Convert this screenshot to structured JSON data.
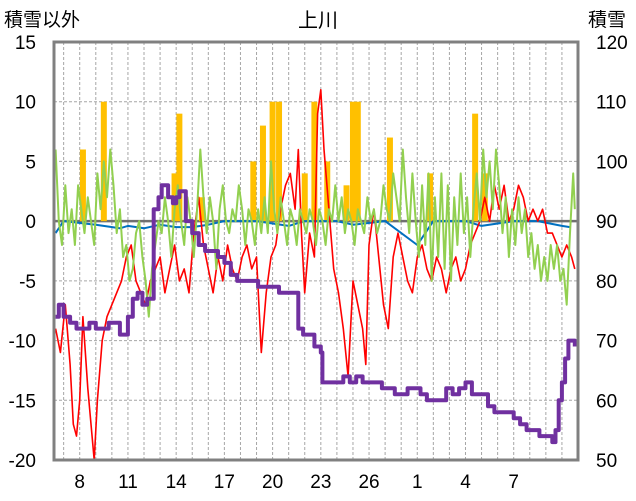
{
  "chart_data": {
    "type": "line",
    "title": "上川",
    "ylabel_left": "積雪以外",
    "ylabel_right": "積雪",
    "ylim_left": [
      -20,
      15
    ],
    "ylim_right": [
      50,
      120
    ],
    "yticks_left": [
      "15",
      "10",
      "5",
      "0",
      "-5",
      "-10",
      "-15",
      "-20"
    ],
    "yticks_right": [
      "120",
      "110",
      "100",
      "90",
      "80",
      "70",
      "60",
      "50"
    ],
    "xtick_labels": [
      "8",
      "11",
      "14",
      "17",
      "20",
      "23",
      "26",
      "1",
      "4",
      "7"
    ],
    "grid": true,
    "colors": {
      "snow_depth": "#7030a0",
      "temperature": "#ff0000",
      "green_series": "#92d050",
      "orange_bars": "#ffc000",
      "blue_series": "#0070c0",
      "frame": "#808080",
      "grid": "#a6a6a6"
    },
    "snow_depth": [
      [
        6.5,
        74
      ],
      [
        6.7,
        76
      ],
      [
        7.0,
        74
      ],
      [
        7.4,
        73
      ],
      [
        7.8,
        72
      ],
      [
        8.2,
        72
      ],
      [
        8.6,
        73
      ],
      [
        9.0,
        72
      ],
      [
        9.4,
        72
      ],
      [
        9.8,
        73
      ],
      [
        10.2,
        73
      ],
      [
        10.5,
        71
      ],
      [
        10.8,
        71
      ],
      [
        11.0,
        74
      ],
      [
        11.3,
        77
      ],
      [
        11.6,
        78
      ],
      [
        11.9,
        76
      ],
      [
        12.2,
        77
      ],
      [
        12.6,
        92
      ],
      [
        12.9,
        94
      ],
      [
        13.1,
        96
      ],
      [
        13.3,
        96
      ],
      [
        13.5,
        94
      ],
      [
        13.8,
        93
      ],
      [
        14.0,
        94
      ],
      [
        14.2,
        95
      ],
      [
        14.6,
        90
      ],
      [
        15.0,
        88
      ],
      [
        15.4,
        86
      ],
      [
        15.8,
        85
      ],
      [
        16.2,
        85
      ],
      [
        16.6,
        84
      ],
      [
        17.0,
        83
      ],
      [
        17.4,
        81
      ],
      [
        17.8,
        80
      ],
      [
        18.3,
        80
      ],
      [
        18.7,
        80
      ],
      [
        19.1,
        79
      ],
      [
        19.6,
        79
      ],
      [
        20.0,
        79
      ],
      [
        20.4,
        78
      ],
      [
        20.8,
        78
      ],
      [
        21.2,
        78
      ],
      [
        21.6,
        72
      ],
      [
        21.9,
        71
      ],
      [
        22.2,
        71
      ],
      [
        22.6,
        69
      ],
      [
        23.0,
        68
      ],
      [
        23.1,
        63
      ],
      [
        23.6,
        63
      ],
      [
        24.0,
        63
      ],
      [
        24.4,
        64
      ],
      [
        24.8,
        63
      ],
      [
        25.2,
        64
      ],
      [
        25.6,
        63
      ],
      [
        26.0,
        63
      ],
      [
        26.4,
        63
      ],
      [
        26.8,
        62
      ],
      [
        27.2,
        62
      ],
      [
        27.6,
        61
      ],
      [
        28.0,
        61
      ],
      [
        28.4,
        62
      ],
      [
        28.8,
        62
      ],
      [
        29.2,
        61
      ],
      [
        29.6,
        60
      ],
      [
        30.0,
        60
      ],
      [
        30.4,
        60
      ],
      [
        30.8,
        62
      ],
      [
        31.2,
        61
      ],
      [
        31.6,
        62
      ],
      [
        32.0,
        63
      ],
      [
        32.4,
        61
      ],
      [
        32.8,
        61
      ],
      [
        33.4,
        59
      ],
      [
        33.8,
        58
      ],
      [
        34.2,
        58
      ],
      [
        34.6,
        58
      ],
      [
        35.0,
        57
      ],
      [
        35.4,
        56
      ],
      [
        35.8,
        55
      ],
      [
        36.2,
        55
      ],
      [
        36.6,
        54
      ],
      [
        37.0,
        54
      ],
      [
        37.4,
        53
      ],
      [
        37.6,
        55
      ],
      [
        37.8,
        60
      ],
      [
        38.0,
        63
      ],
      [
        38.2,
        67
      ],
      [
        38.4,
        70
      ],
      [
        38.6,
        70
      ],
      [
        38.8,
        69
      ]
    ],
    "temperature": [
      [
        6.5,
        -9
      ],
      [
        6.8,
        -11
      ],
      [
        7.1,
        -7
      ],
      [
        7.4,
        -12
      ],
      [
        7.6,
        -17
      ],
      [
        7.8,
        -18
      ],
      [
        8.0,
        -15
      ],
      [
        8.2,
        -8
      ],
      [
        8.5,
        -14
      ],
      [
        8.7,
        -17
      ],
      [
        8.9,
        -20
      ],
      [
        9.1,
        -15
      ],
      [
        9.4,
        -10
      ],
      [
        9.7,
        -8
      ],
      [
        10.0,
        -7
      ],
      [
        10.3,
        -6
      ],
      [
        10.6,
        -5
      ],
      [
        10.9,
        -3
      ],
      [
        11.2,
        -2
      ],
      [
        11.5,
        -5
      ],
      [
        11.8,
        -6
      ],
      [
        12.1,
        -7
      ],
      [
        12.4,
        -5
      ],
      [
        12.7,
        -4
      ],
      [
        13.0,
        -3
      ],
      [
        13.3,
        -6
      ],
      [
        13.6,
        -4
      ],
      [
        13.9,
        -2
      ],
      [
        14.2,
        -5
      ],
      [
        14.5,
        -4
      ],
      [
        14.8,
        -6
      ],
      [
        15.1,
        -1
      ],
      [
        15.4,
        2
      ],
      [
        15.7,
        -2
      ],
      [
        16.0,
        -4
      ],
      [
        16.3,
        -6
      ],
      [
        16.6,
        -3
      ],
      [
        16.9,
        -5
      ],
      [
        17.2,
        -2
      ],
      [
        17.5,
        -4
      ],
      [
        17.8,
        -5
      ],
      [
        18.1,
        -3
      ],
      [
        18.4,
        -2
      ],
      [
        18.7,
        -4
      ],
      [
        19.0,
        -3
      ],
      [
        19.3,
        -11
      ],
      [
        19.6,
        -6
      ],
      [
        19.9,
        -3
      ],
      [
        20.2,
        -2
      ],
      [
        20.5,
        1
      ],
      [
        20.8,
        3
      ],
      [
        21.1,
        4
      ],
      [
        21.4,
        1
      ],
      [
        21.6,
        6
      ],
      [
        21.8,
        -1
      ],
      [
        22.0,
        -6
      ],
      [
        22.3,
        -1
      ],
      [
        22.6,
        -3
      ],
      [
        22.8,
        9
      ],
      [
        23.0,
        11
      ],
      [
        23.2,
        6
      ],
      [
        23.5,
        1
      ],
      [
        23.8,
        -4
      ],
      [
        24.1,
        -6
      ],
      [
        24.4,
        -9
      ],
      [
        24.7,
        -13
      ],
      [
        25.0,
        -5
      ],
      [
        25.3,
        -7
      ],
      [
        25.6,
        -9
      ],
      [
        25.8,
        -12
      ],
      [
        26.0,
        -2
      ],
      [
        26.3,
        1
      ],
      [
        26.6,
        -3
      ],
      [
        26.9,
        -7
      ],
      [
        27.2,
        -9
      ],
      [
        27.5,
        -3
      ],
      [
        27.8,
        -1
      ],
      [
        28.1,
        -3
      ],
      [
        28.4,
        -5
      ],
      [
        28.7,
        -6
      ],
      [
        29.0,
        -3
      ],
      [
        29.3,
        -2
      ],
      [
        29.6,
        -4
      ],
      [
        29.9,
        -5
      ],
      [
        30.2,
        -3
      ],
      [
        30.5,
        -4
      ],
      [
        30.8,
        -6
      ],
      [
        31.1,
        -4
      ],
      [
        31.4,
        -3
      ],
      [
        31.7,
        -5
      ],
      [
        32.0,
        -4
      ],
      [
        32.3,
        -2
      ],
      [
        32.6,
        -1
      ],
      [
        32.9,
        0
      ],
      [
        33.2,
        2
      ],
      [
        33.5,
        0
      ],
      [
        33.8,
        3
      ],
      [
        34.1,
        1
      ],
      [
        34.4,
        3
      ],
      [
        34.7,
        0
      ],
      [
        35.0,
        1
      ],
      [
        35.3,
        3
      ],
      [
        35.6,
        2
      ],
      [
        35.9,
        0
      ],
      [
        36.2,
        1
      ],
      [
        36.5,
        0
      ],
      [
        36.8,
        1
      ],
      [
        37.1,
        -1
      ],
      [
        37.4,
        -1
      ],
      [
        37.7,
        -2
      ],
      [
        38.0,
        -3
      ],
      [
        38.3,
        -2
      ],
      [
        38.6,
        -3
      ],
      [
        38.8,
        -4
      ]
    ],
    "green_series": [
      [
        6.5,
        6
      ],
      [
        6.7,
        0
      ],
      [
        6.9,
        -2
      ],
      [
        7.1,
        3
      ],
      [
        7.3,
        -1
      ],
      [
        7.5,
        1
      ],
      [
        7.7,
        -2
      ],
      [
        7.9,
        3
      ],
      [
        8.1,
        1
      ],
      [
        8.3,
        -1
      ],
      [
        8.5,
        2
      ],
      [
        8.7,
        0
      ],
      [
        8.9,
        -2
      ],
      [
        9.1,
        4
      ],
      [
        9.3,
        1
      ],
      [
        9.5,
        5
      ],
      [
        9.7,
        2
      ],
      [
        9.9,
        6
      ],
      [
        10.1,
        3
      ],
      [
        10.3,
        -1
      ],
      [
        10.5,
        1
      ],
      [
        10.7,
        -3
      ],
      [
        10.9,
        -2
      ],
      [
        11.1,
        -5
      ],
      [
        11.3,
        -4
      ],
      [
        11.5,
        -1
      ],
      [
        11.7,
        0
      ],
      [
        11.9,
        -3
      ],
      [
        12.1,
        -5
      ],
      [
        12.3,
        -8
      ],
      [
        12.5,
        -4
      ],
      [
        12.7,
        -2
      ],
      [
        12.9,
        0
      ],
      [
        13.1,
        -1
      ],
      [
        13.3,
        2
      ],
      [
        13.5,
        0
      ],
      [
        13.7,
        -3
      ],
      [
        13.9,
        1
      ],
      [
        14.1,
        3
      ],
      [
        14.3,
        0
      ],
      [
        14.5,
        -2
      ],
      [
        14.7,
        2
      ],
      [
        14.9,
        0
      ],
      [
        15.1,
        -3
      ],
      [
        15.3,
        1
      ],
      [
        15.5,
        6
      ],
      [
        15.7,
        2
      ],
      [
        15.9,
        -1
      ],
      [
        16.1,
        2
      ],
      [
        16.3,
        0
      ],
      [
        16.5,
        -4
      ],
      [
        16.7,
        1
      ],
      [
        16.9,
        3
      ],
      [
        17.1,
        0
      ],
      [
        17.3,
        -1
      ],
      [
        17.5,
        1
      ],
      [
        17.7,
        0
      ],
      [
        17.9,
        3
      ],
      [
        18.1,
        1
      ],
      [
        18.3,
        -2
      ],
      [
        18.5,
        1
      ],
      [
        18.7,
        0
      ],
      [
        18.9,
        -2
      ],
      [
        19.1,
        1
      ],
      [
        19.3,
        -1
      ],
      [
        19.5,
        2
      ],
      [
        19.7,
        -1
      ],
      [
        19.9,
        5
      ],
      [
        20.1,
        1
      ],
      [
        20.3,
        -1
      ],
      [
        20.5,
        2
      ],
      [
        20.7,
        0
      ],
      [
        20.9,
        -2
      ],
      [
        21.1,
        1
      ],
      [
        21.3,
        0
      ],
      [
        21.5,
        -2
      ],
      [
        21.7,
        1
      ],
      [
        21.9,
        0
      ],
      [
        22.1,
        -1
      ],
      [
        22.3,
        1
      ],
      [
        22.5,
        0
      ],
      [
        22.7,
        -2
      ],
      [
        22.9,
        1
      ],
      [
        23.1,
        0
      ],
      [
        23.3,
        -2
      ],
      [
        23.5,
        1
      ],
      [
        23.7,
        0
      ],
      [
        23.9,
        3
      ],
      [
        24.1,
        0
      ],
      [
        24.3,
        2
      ],
      [
        24.5,
        -1
      ],
      [
        24.7,
        1
      ],
      [
        24.9,
        0
      ],
      [
        25.1,
        -2
      ],
      [
        25.3,
        1
      ],
      [
        25.5,
        0
      ],
      [
        25.7,
        -1
      ],
      [
        25.9,
        2
      ],
      [
        26.1,
        0
      ],
      [
        26.3,
        1
      ],
      [
        26.5,
        -1
      ],
      [
        26.7,
        0
      ],
      [
        26.9,
        3
      ],
      [
        27.1,
        1
      ],
      [
        27.3,
        0
      ],
      [
        27.5,
        4
      ],
      [
        27.7,
        2
      ],
      [
        27.9,
        0
      ],
      [
        28.1,
        6
      ],
      [
        28.3,
        2
      ],
      [
        28.5,
        -1
      ],
      [
        28.7,
        4
      ],
      [
        28.9,
        0
      ],
      [
        29.1,
        -3
      ],
      [
        29.3,
        3
      ],
      [
        29.5,
        -2
      ],
      [
        29.7,
        4
      ],
      [
        29.9,
        -5
      ],
      [
        30.1,
        2
      ],
      [
        30.3,
        -3
      ],
      [
        30.5,
        4
      ],
      [
        30.7,
        -4
      ],
      [
        30.9,
        3
      ],
      [
        31.1,
        -5
      ],
      [
        31.3,
        2
      ],
      [
        31.5,
        -2
      ],
      [
        31.7,
        4
      ],
      [
        31.9,
        -1
      ],
      [
        32.1,
        2
      ],
      [
        32.3,
        -3
      ],
      [
        32.5,
        1
      ],
      [
        32.7,
        4
      ],
      [
        32.9,
        0
      ],
      [
        33.1,
        6
      ],
      [
        33.3,
        2
      ],
      [
        33.5,
        5
      ],
      [
        33.7,
        1
      ],
      [
        33.9,
        6
      ],
      [
        34.1,
        3
      ],
      [
        34.3,
        -1
      ],
      [
        34.5,
        2
      ],
      [
        34.7,
        -3
      ],
      [
        34.9,
        1
      ],
      [
        35.1,
        -2
      ],
      [
        35.3,
        2
      ],
      [
        35.5,
        -1
      ],
      [
        35.7,
        1
      ],
      [
        35.9,
        -3
      ],
      [
        36.1,
        -1
      ],
      [
        36.3,
        -4
      ],
      [
        36.5,
        -2
      ],
      [
        36.7,
        -5
      ],
      [
        36.9,
        -3
      ],
      [
        37.1,
        -5
      ],
      [
        37.3,
        -2
      ],
      [
        37.5,
        -4
      ],
      [
        37.7,
        -2
      ],
      [
        37.9,
        -5
      ],
      [
        38.1,
        -4
      ],
      [
        38.3,
        -7
      ],
      [
        38.5,
        -1
      ],
      [
        38.7,
        4
      ],
      [
        38.8,
        1
      ]
    ],
    "orange_bars": [
      [
        8.2,
        6
      ],
      [
        9.5,
        10
      ],
      [
        13.9,
        4
      ],
      [
        14.2,
        9
      ],
      [
        15.6,
        2
      ],
      [
        18.8,
        5
      ],
      [
        19.4,
        8
      ],
      [
        20.0,
        10
      ],
      [
        20.4,
        10
      ],
      [
        22.0,
        4
      ],
      [
        22.6,
        10
      ],
      [
        23.4,
        5
      ],
      [
        24.6,
        3
      ],
      [
        25.0,
        10
      ],
      [
        25.3,
        10
      ],
      [
        27.3,
        7
      ],
      [
        29.8,
        4
      ],
      [
        32.6,
        9
      ],
      [
        33.2,
        4
      ]
    ],
    "blue_series": [
      [
        6.5,
        -1
      ],
      [
        7.0,
        0
      ],
      [
        9.0,
        -0.3
      ],
      [
        10.5,
        -0.6
      ],
      [
        11.0,
        -0.4
      ],
      [
        12.0,
        -0.6
      ],
      [
        13.0,
        -0.3
      ],
      [
        14.0,
        -0.5
      ],
      [
        15.0,
        -0.5
      ],
      [
        16.0,
        -0.3
      ],
      [
        17.0,
        0
      ],
      [
        19.0,
        0
      ],
      [
        21.0,
        -0.4
      ],
      [
        22.0,
        0
      ],
      [
        24.0,
        0
      ],
      [
        25.0,
        -0.3
      ],
      [
        27.0,
        0
      ],
      [
        29.0,
        -2
      ],
      [
        30.0,
        0
      ],
      [
        32.0,
        0
      ],
      [
        33.0,
        -0.4
      ],
      [
        35.0,
        0
      ],
      [
        36.5,
        0
      ],
      [
        38.0,
        -0.4
      ],
      [
        38.5,
        -0.5
      ]
    ]
  }
}
